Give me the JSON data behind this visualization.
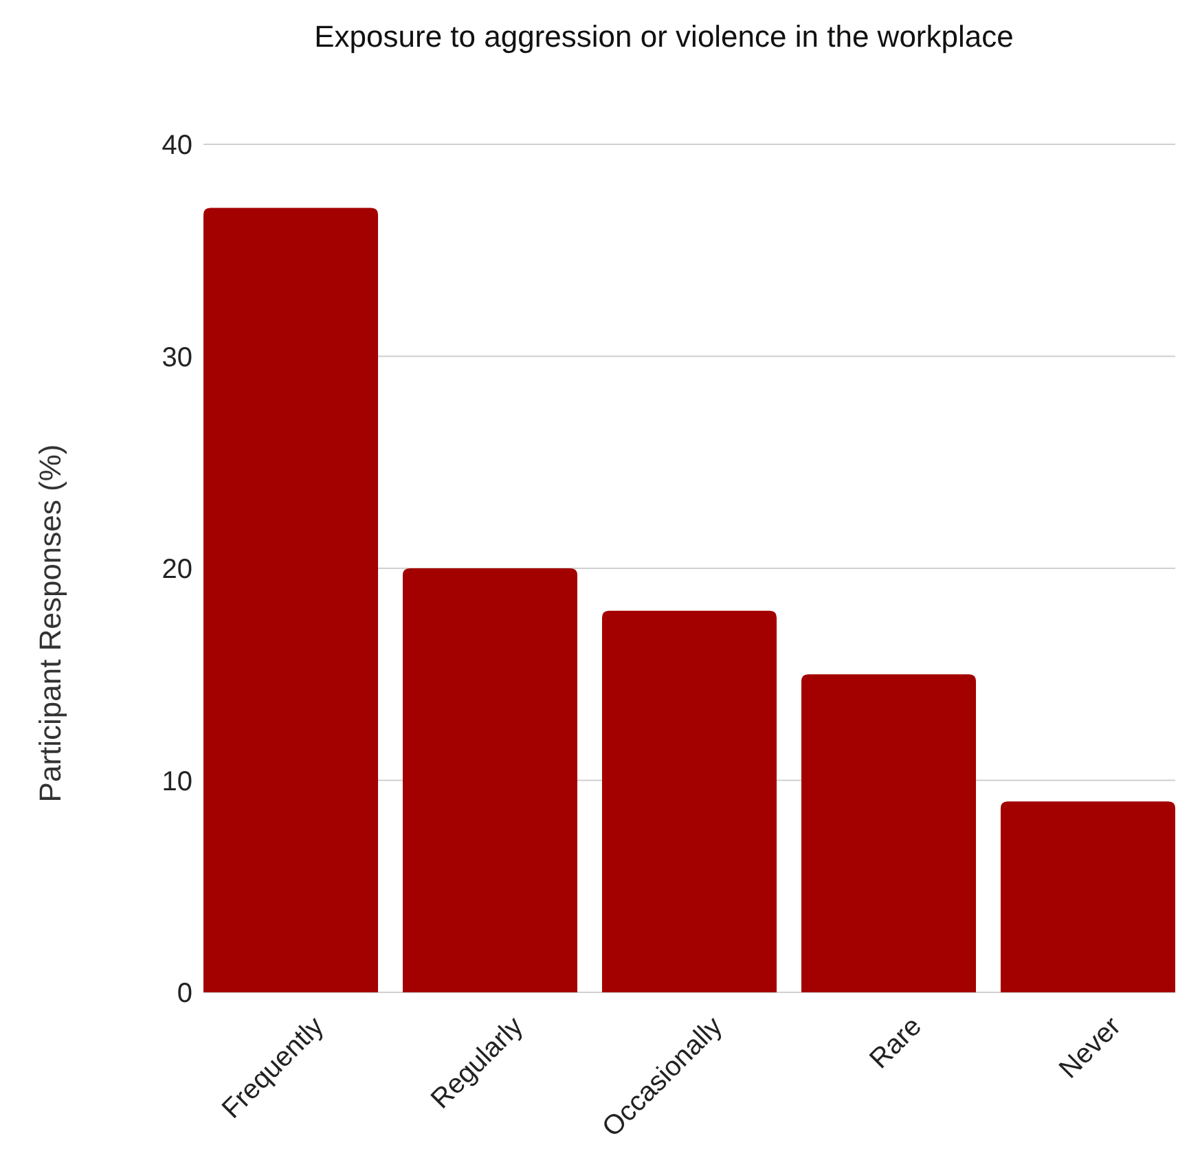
{
  "chart_data": {
    "type": "bar",
    "title": "Exposure to aggression or violence in the workplace",
    "ylabel": "Participant Responses (%)",
    "categories": [
      "Frequently",
      "Regularly",
      "Occasionally",
      "Rare",
      "Never"
    ],
    "values": [
      37,
      20,
      18,
      15,
      9
    ],
    "color": "#a30000",
    "ylim": [
      0,
      40
    ],
    "yticks": [
      0,
      10,
      20,
      30,
      40
    ],
    "grid": "y"
  }
}
